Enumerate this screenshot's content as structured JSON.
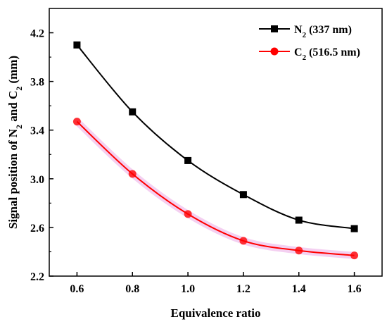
{
  "chart_data": {
    "type": "line",
    "xlabel": "Equivalence ratio",
    "ylabel": {
      "prefix": "Signal  position of  N",
      "sub1": "2",
      "middle": "  and C",
      "sub2": "2",
      "suffix": " (mm)"
    },
    "xlim": [
      0.5,
      1.7
    ],
    "ylim": [
      2.2,
      4.4
    ],
    "xticks": [
      0.6,
      0.8,
      1.0,
      1.2,
      1.4,
      1.6
    ],
    "xtick_labels": [
      "0.6",
      "0.8",
      "1.0",
      "1.2",
      "1.4",
      "1.6"
    ],
    "yticks": [
      2.2,
      2.6,
      3.0,
      3.4,
      3.8,
      4.2
    ],
    "ytick_labels": [
      "2.2",
      "2.6",
      "3.0",
      "3.4",
      "3.8",
      "4.2"
    ],
    "legend_position": "top-right",
    "grid": false,
    "x": [
      0.6,
      0.8,
      1.0,
      1.2,
      1.4,
      1.6
    ],
    "series": [
      {
        "name_base": "N",
        "name_sub": "2",
        "name_rest": " (337 nm)",
        "marker": "square",
        "color": "#000000",
        "values": [
          4.1,
          3.55,
          3.15,
          2.87,
          2.66,
          2.59
        ]
      },
      {
        "name_base": "C",
        "name_sub": "2",
        "name_rest": " (516.5 nm)",
        "marker": "circle",
        "color": "#ff0000",
        "values": [
          3.47,
          3.04,
          2.71,
          2.49,
          2.41,
          2.37
        ]
      }
    ]
  }
}
